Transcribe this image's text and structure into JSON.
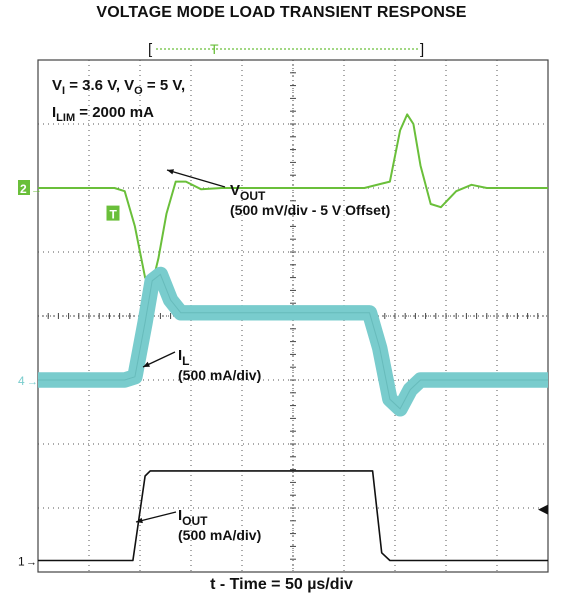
{
  "title": "VOLTAGE MODE LOAD TRANSIENT RESPONSE",
  "xlabel": "t - Time = 50 µs/div",
  "chart_data": {
    "type": "line",
    "title": "VOLTAGE MODE LOAD TRANSIENT RESPONSE",
    "xlabel": "t - Time = 50 µs/div",
    "ylabel": "",
    "grid": true,
    "grid_divisions": {
      "horizontal": 10,
      "vertical": 8
    },
    "time_per_div_us": 50,
    "xlim_us": [
      0,
      500
    ],
    "ylim_div": [
      -4,
      4
    ],
    "conditions": {
      "vi": "V",
      "vi_sub": "I",
      "vi_rest": " = 3.6 V, V",
      "vo_sub": "O",
      "vo_rest": " = 5 V,",
      "ilim": "I",
      "ilim_sub": "LIM",
      "ilim_rest": " = 2000 mA"
    },
    "markers": {
      "trigger_bracket_left": "[",
      "trigger_bracket_right": "]",
      "trigger_letter": "T",
      "trigger_point_letter": "T",
      "ch2_marker": "2",
      "ch4_marker": "4",
      "ch1_marker": "1"
    },
    "series": [
      {
        "name": "VOUT",
        "channel": "2",
        "color": "#6abf3a",
        "scale": "500 mV/div",
        "offset": "5 V Offset",
        "label_main": "V",
        "label_sub": "OUT",
        "label_scale": "(500 mV/div - 5 V Offset)",
        "x": [
          0,
          75,
          85,
          95,
          105,
          112,
          118,
          126,
          135,
          145,
          160,
          180,
          200,
          240,
          280,
          320,
          345,
          355,
          362,
          368,
          375,
          385,
          395,
          410,
          425,
          440,
          460,
          500
        ],
        "values": [
          2.0,
          2.0,
          1.95,
          1.4,
          0.6,
          0.5,
          0.9,
          1.6,
          2.1,
          2.1,
          1.98,
          2.0,
          2.0,
          2.0,
          2.0,
          2.0,
          2.1,
          2.9,
          3.15,
          3.0,
          2.35,
          1.75,
          1.7,
          1.95,
          2.05,
          2.0,
          2.0,
          2.0
        ]
      },
      {
        "name": "IL",
        "channel": "4",
        "color": "#79cccd",
        "scale": "500 mA/div",
        "label_main": "I",
        "label_sub": "L",
        "label_scale": "(500 mA/div)",
        "ripple_div": 0.12,
        "x": [
          0,
          85,
          95,
          105,
          112,
          120,
          130,
          140,
          160,
          200,
          300,
          325,
          335,
          345,
          355,
          365,
          375,
          390,
          420,
          500
        ],
        "values": [
          -1.0,
          -1.0,
          -0.95,
          -0.1,
          0.55,
          0.65,
          0.25,
          0.05,
          0.05,
          0.05,
          0.05,
          0.05,
          -0.5,
          -1.3,
          -1.45,
          -1.15,
          -1.0,
          -1.0,
          -1.0,
          -1.0
        ]
      },
      {
        "name": "IOUT",
        "channel": "1",
        "color": "#111111",
        "scale": "500 mA/div",
        "label_main": "I",
        "label_sub": "OUT",
        "label_scale": "(500 mA/div)",
        "x": [
          0,
          90,
          93,
          105,
          110,
          325,
          328,
          337,
          345,
          500
        ],
        "values": [
          -3.82,
          -3.82,
          -3.82,
          -2.5,
          -2.42,
          -2.42,
          -2.42,
          -3.7,
          -3.82,
          -3.82
        ]
      }
    ]
  }
}
